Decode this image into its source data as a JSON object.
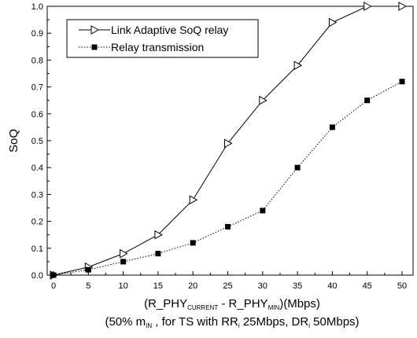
{
  "chart_data": {
    "type": "line",
    "ylabel": "SoQ",
    "xlabel": {
      "line1": {
        "a": "(R_PHY",
        "a_sub": "CURRENT",
        "b": " - R_PHY",
        "b_sub": "MIN",
        "c": ")(Mbps)"
      },
      "line2": {
        "a": "(50% m",
        "a_sub": "IN",
        "b": " , for TS with RR",
        "b_sub": "i",
        "c": " 25Mbps, DR",
        "c_sub": "i",
        "d": " 50Mbps)"
      }
    },
    "xlim": [
      0,
      52
    ],
    "ylim": [
      0,
      1.0
    ],
    "xticks": [
      "0",
      "5",
      "10",
      "15",
      "20",
      "25",
      "30",
      "35",
      "40",
      "45",
      "50"
    ],
    "yticks": [
      "0.0",
      "0.1",
      "0.2",
      "0.3",
      "0.4",
      "0.5",
      "0.6",
      "0.7",
      "0.8",
      "0.9",
      "1.0"
    ],
    "grid": false,
    "legend_position": "top-left",
    "series": [
      {
        "name": "Link Adaptive SoQ relay",
        "marker": "open-triangle-right",
        "line": "solid",
        "color": "#000000",
        "x": [
          0,
          5,
          10,
          15,
          20,
          25,
          30,
          35,
          40,
          45,
          50
        ],
        "y": [
          0.0,
          0.03,
          0.08,
          0.15,
          0.28,
          0.49,
          0.65,
          0.78,
          0.94,
          1.0,
          1.0
        ]
      },
      {
        "name": "Relay transmission",
        "marker": "filled-square",
        "line": "dotted",
        "color": "#000000",
        "x": [
          0,
          5,
          10,
          15,
          20,
          25,
          30,
          35,
          40,
          45,
          50
        ],
        "y": [
          0.0,
          0.02,
          0.05,
          0.08,
          0.12,
          0.18,
          0.24,
          0.4,
          0.55,
          0.65,
          0.72
        ]
      }
    ]
  }
}
